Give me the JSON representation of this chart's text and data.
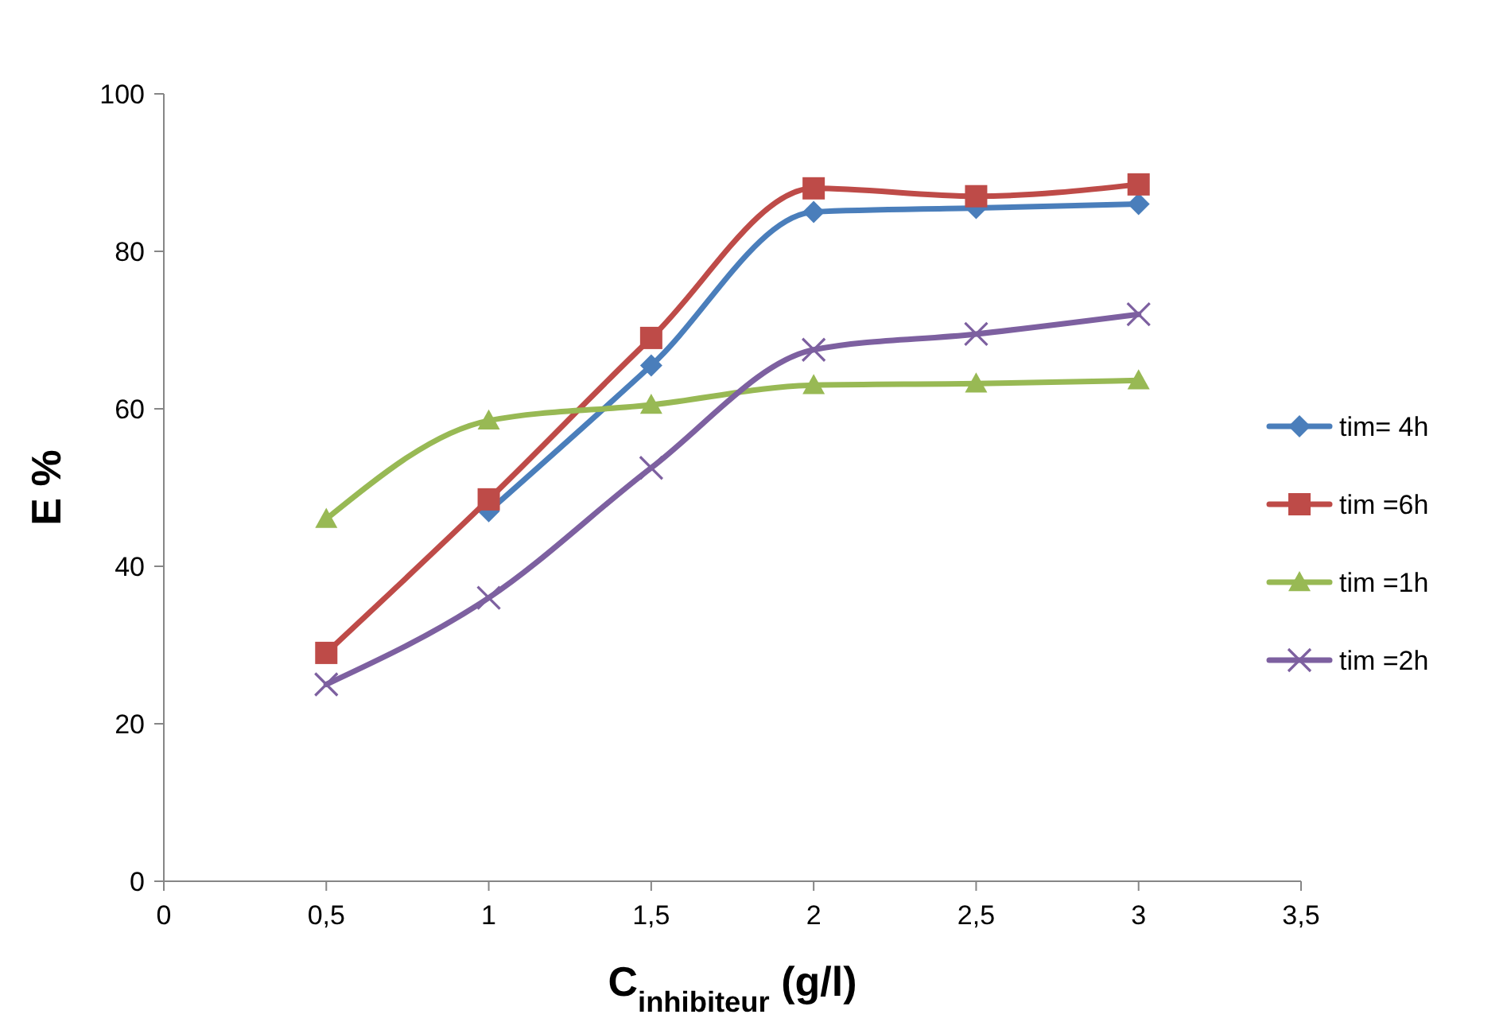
{
  "chart_data": {
    "type": "line",
    "xlabel": "C$_{inhibiteur}$ (g/l)",
    "ylabel": "E %",
    "x": [
      0.5,
      1,
      1.5,
      2,
      2.5,
      3
    ],
    "xlim": [
      0,
      3.5
    ],
    "xticks": [
      0,
      {
        "value": 0.5,
        "label": "0,5"
      },
      1,
      {
        "value": 1.5,
        "label": "1,5"
      },
      2,
      {
        "value": 2.5,
        "label": "2,5"
      },
      3,
      {
        "value": 3.5,
        "label": "3,5"
      }
    ],
    "ylim": [
      0,
      100
    ],
    "yticks": [
      0,
      20,
      40,
      60,
      80,
      100
    ],
    "grid": false,
    "legend": "right",
    "series": [
      {
        "name": "tim= 4h",
        "color": "#4a7ebb",
        "marker": "diamond",
        "values": [
          null,
          47,
          65.5,
          85,
          85.5,
          86
        ]
      },
      {
        "name": "tim =6h",
        "color": "#be4b48",
        "marker": "square",
        "values": [
          29,
          48.5,
          69,
          88,
          87,
          88.5
        ]
      },
      {
        "name": "tim =1h",
        "color": "#98b954",
        "marker": "triangle",
        "values": [
          46,
          58.5,
          60.5,
          63,
          63.2,
          63.6
        ]
      },
      {
        "name": "tim =2h",
        "color": "#7d60a0",
        "marker": "cross",
        "values": [
          25,
          36,
          52.5,
          67.5,
          69.5,
          72
        ]
      }
    ]
  }
}
